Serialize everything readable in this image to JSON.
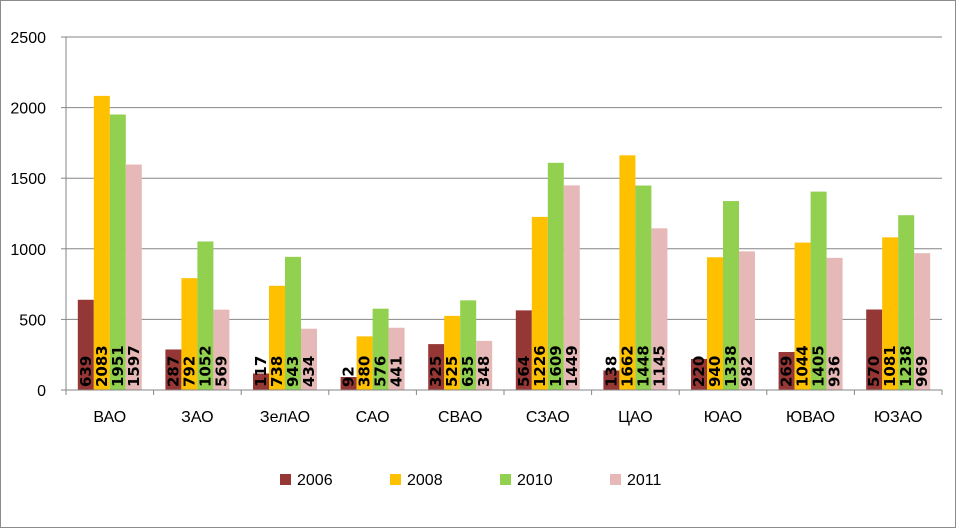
{
  "chart_data": {
    "type": "bar",
    "categories": [
      "ВАО",
      "ЗАО",
      "ЗелАО",
      "САО",
      "СВАО",
      "СЗАО",
      "ЦАО",
      "ЮАО",
      "ЮВАО",
      "ЮЗАО"
    ],
    "series": [
      {
        "name": "2006",
        "color": "#953735",
        "values": [
          639,
          287,
          117,
          92,
          325,
          564,
          138,
          220,
          269,
          570
        ]
      },
      {
        "name": "2008",
        "color": "#ffc000",
        "values": [
          2083,
          792,
          738,
          380,
          525,
          1226,
          1662,
          940,
          1044,
          1081
        ]
      },
      {
        "name": "2010",
        "color": "#92d050",
        "values": [
          1951,
          1052,
          943,
          576,
          635,
          1609,
          1448,
          1338,
          1405,
          1238
        ]
      },
      {
        "name": "2011",
        "color": "#e6b9b8",
        "values": [
          1597,
          569,
          434,
          441,
          348,
          1449,
          1145,
          982,
          936,
          969
        ]
      }
    ],
    "ylim": [
      0,
      2500
    ],
    "yticks": [
      0,
      500,
      1000,
      1500,
      2000,
      2500
    ],
    "grid": true,
    "legend": "bottom",
    "data_labels": "rotated-vertical-inside"
  }
}
